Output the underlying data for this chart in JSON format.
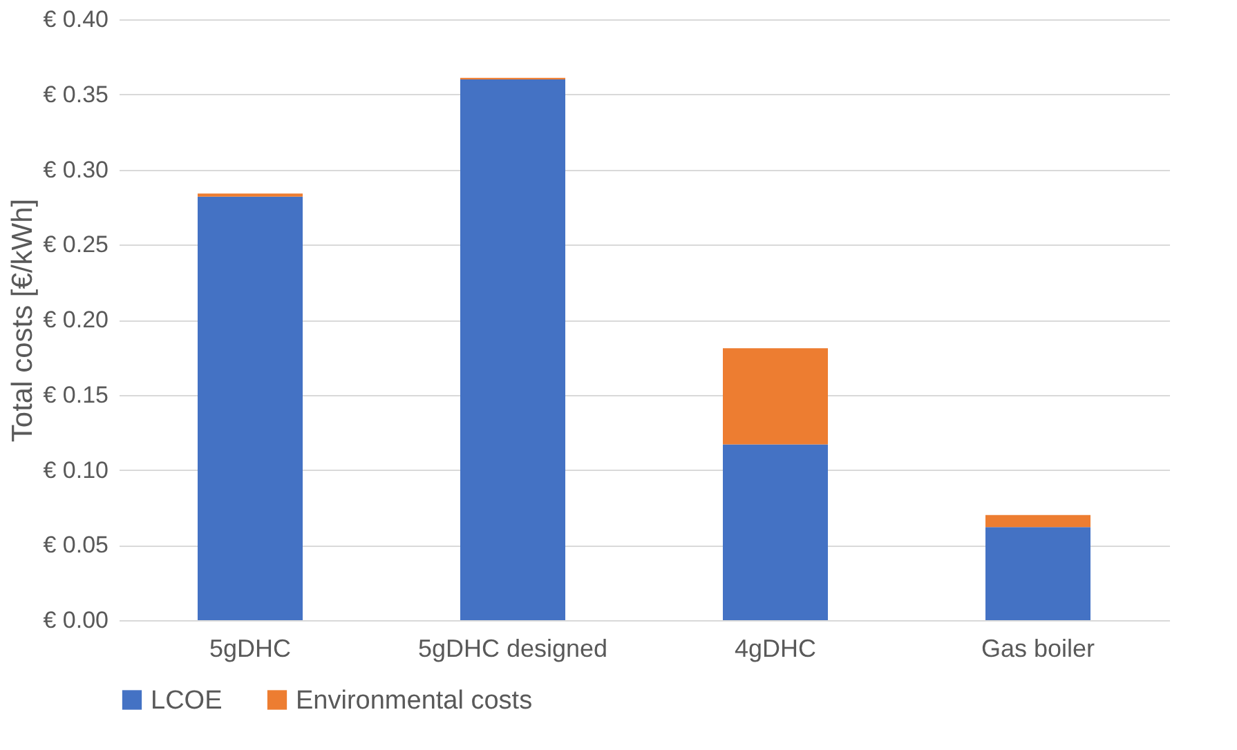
{
  "chart_data": {
    "type": "bar",
    "stacked": true,
    "ylabel": "Total costs [€/kWh]",
    "categories": [
      "5gDHC",
      "5gDHC designed",
      "4gDHC",
      "Gas boiler"
    ],
    "series": [
      {
        "name": "LCOE",
        "color": "#4472c4",
        "values": [
          0.282,
          0.36,
          0.117,
          0.062
        ]
      },
      {
        "name": "Environmental costs",
        "color": "#ed7d31",
        "values": [
          0.002,
          0.001,
          0.064,
          0.008
        ]
      }
    ],
    "ylim": [
      0,
      0.4
    ],
    "yticks": [
      {
        "value": 0,
        "label": "€ 0.00"
      },
      {
        "value": 0.05,
        "label": "€ 0.05"
      },
      {
        "value": 0.1,
        "label": "€ 0.10"
      },
      {
        "value": 0.15,
        "label": "€ 0.15"
      },
      {
        "value": 0.2,
        "label": "€ 0.20"
      },
      {
        "value": 0.25,
        "label": "€ 0.25"
      },
      {
        "value": 0.3,
        "label": "€ 0.30"
      },
      {
        "value": 0.35,
        "label": "€ 0.35"
      },
      {
        "value": 0.4,
        "label": "€ 0.40"
      }
    ],
    "grid": "y",
    "legend": "bottom"
  }
}
